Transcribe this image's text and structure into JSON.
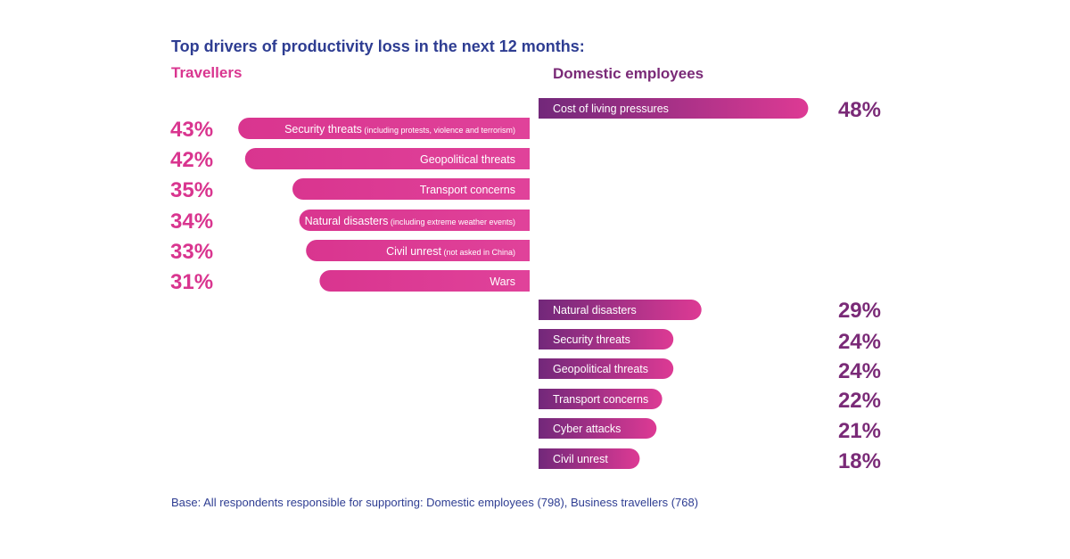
{
  "header": {
    "title": "Top drivers of productivity loss in the next 12 months:",
    "travellers_heading": "Travellers",
    "domestic_heading": "Domestic employees"
  },
  "footer": {
    "base_note": "Base: All respondents responsible for supporting: Domestic employees (798), Business travellers (768)"
  },
  "colors": {
    "title_blue": "#2e3d92",
    "pink": "#d9358f",
    "pink_light": "#e0429a",
    "purple": "#7a2a77",
    "purple_dark": "#72287a"
  },
  "chart_data": [
    {
      "type": "bar",
      "orientation": "horizontal",
      "series_name": "Travellers",
      "direction": "leftward",
      "unit": "%",
      "categories": [
        {
          "label": "Security threats",
          "note": "(including protests, violence and terrorism)"
        },
        {
          "label": "Geopolitical threats",
          "note": ""
        },
        {
          "label": "Transport concerns",
          "note": ""
        },
        {
          "label": "Natural disasters",
          "note": "(including extreme weather events)"
        },
        {
          "label": "Civil unrest",
          "note": "(not asked in China)"
        },
        {
          "label": "Wars",
          "note": ""
        }
      ],
      "values": [
        43,
        42,
        35,
        34,
        33,
        31
      ],
      "value_labels": [
        "43%",
        "42%",
        "35%",
        "34%",
        "33%",
        "31%"
      ]
    },
    {
      "type": "bar",
      "orientation": "horizontal",
      "series_name": "Domestic employees",
      "direction": "rightward",
      "unit": "%",
      "categories": [
        {
          "label": "Cost of living pressures",
          "note": ""
        },
        {
          "label": "Natural disasters",
          "note": ""
        },
        {
          "label": "Security threats",
          "note": ""
        },
        {
          "label": "Geopolitical threats",
          "note": ""
        },
        {
          "label": "Transport concerns",
          "note": ""
        },
        {
          "label": "Cyber attacks",
          "note": ""
        },
        {
          "label": "Civil unrest",
          "note": ""
        }
      ],
      "values": [
        48,
        29,
        24,
        24,
        22,
        21,
        18
      ],
      "value_labels": [
        "48%",
        "29%",
        "24%",
        "24%",
        "22%",
        "21%",
        "18%"
      ]
    }
  ]
}
